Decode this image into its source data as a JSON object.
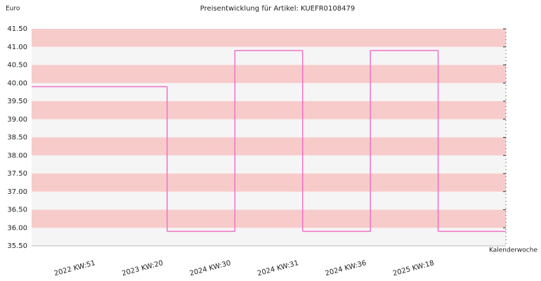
{
  "chart_data": {
    "type": "step",
    "title": "Preisentwicklung für Artikel: KUEFR0108479",
    "y_label": "Euro",
    "x_label": "Kalenderwoche",
    "categories": [
      "2022 KW:51",
      "2023 KW:20",
      "2024 KW:30",
      "2024 KW:31",
      "2024 KW:36",
      "2025 KW:18"
    ],
    "values": [
      39.9,
      35.9,
      40.9,
      35.9,
      40.9,
      35.9
    ],
    "color": "#f070c8",
    "band_colors": [
      "#f8cbcb",
      "#f5f5f5"
    ],
    "ylim": [
      35.5,
      41.5
    ],
    "yticks": [
      {
        "value": 35.5,
        "label": "35.50"
      },
      {
        "value": 36,
        "label": "36.00"
      },
      {
        "value": 36.5,
        "label": "36.50"
      },
      {
        "value": 37,
        "label": "37.00"
      },
      {
        "value": 37.5,
        "label": "37.50"
      },
      {
        "value": 38,
        "label": "38.00"
      },
      {
        "value": 38.5,
        "label": "38.50"
      },
      {
        "value": 39,
        "label": "39.00"
      },
      {
        "value": 39.5,
        "label": "39.50"
      },
      {
        "value": 40,
        "label": "40.00"
      },
      {
        "value": 40.5,
        "label": "40.50"
      },
      {
        "value": 41,
        "label": "41.00"
      },
      {
        "value": 41.5,
        "label": "41.50"
      }
    ]
  }
}
